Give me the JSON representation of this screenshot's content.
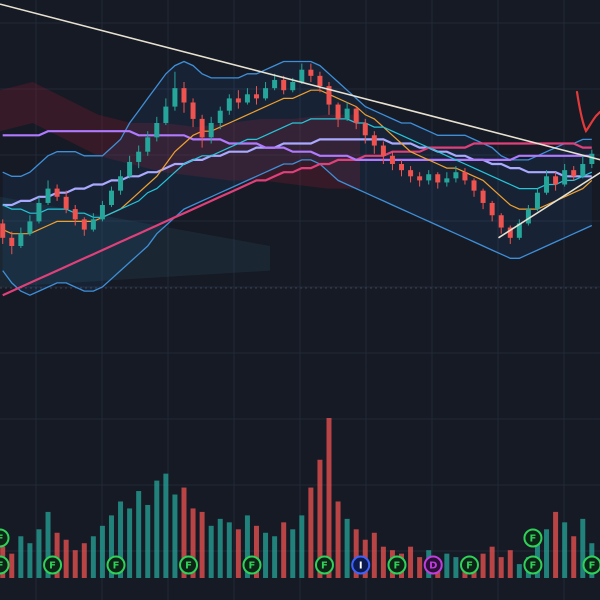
{
  "chart_data": {
    "type": "candlestick",
    "title": "",
    "xlabel": "",
    "ylabel": "",
    "ylim": [
      0,
      100
    ],
    "grid": true,
    "legend": "none",
    "candles": [
      [
        45.5,
        42.0,
        46.5,
        40.5
      ],
      [
        42.0,
        40.0,
        43.5,
        38.0
      ],
      [
        40.0,
        43.0,
        44.5,
        39.5
      ],
      [
        43.0,
        46.0,
        47.5,
        42.5
      ],
      [
        46.0,
        50.5,
        52.0,
        45.5
      ],
      [
        50.5,
        54.0,
        56.0,
        50.0
      ],
      [
        54.0,
        52.0,
        55.0,
        51.0
      ],
      [
        52.0,
        49.0,
        53.5,
        48.0
      ],
      [
        49.0,
        46.5,
        50.0,
        45.0
      ],
      [
        46.5,
        44.0,
        47.0,
        42.5
      ],
      [
        44.0,
        46.5,
        48.0,
        43.5
      ],
      [
        46.5,
        50.0,
        51.0,
        46.0
      ],
      [
        50.0,
        53.5,
        54.5,
        49.5
      ],
      [
        53.5,
        57.0,
        58.5,
        52.5
      ],
      [
        57.0,
        60.5,
        62.0,
        56.5
      ],
      [
        60.5,
        63.0,
        64.5,
        59.0
      ],
      [
        63.0,
        66.5,
        68.0,
        62.0
      ],
      [
        66.5,
        70.0,
        71.5,
        65.5
      ],
      [
        70.0,
        74.0,
        76.0,
        69.5
      ],
      [
        74.0,
        78.5,
        82.5,
        73.0
      ],
      [
        78.5,
        75.0,
        80.0,
        72.5
      ],
      [
        75.0,
        71.0,
        76.0,
        69.0
      ],
      [
        71.0,
        66.5,
        72.0,
        64.0
      ],
      [
        66.5,
        70.0,
        71.5,
        65.0
      ],
      [
        70.0,
        73.0,
        74.0,
        68.5
      ],
      [
        73.0,
        76.0,
        77.0,
        72.0
      ],
      [
        76.0,
        75.0,
        78.0,
        73.5
      ],
      [
        75.0,
        77.0,
        78.5,
        74.5
      ],
      [
        77.0,
        76.0,
        79.0,
        74.5
      ],
      [
        76.0,
        78.5,
        80.0,
        75.5
      ],
      [
        78.5,
        80.5,
        82.0,
        78.0
      ],
      [
        80.5,
        78.0,
        81.5,
        77.0
      ],
      [
        78.0,
        80.0,
        81.0,
        77.5
      ],
      [
        80.0,
        83.0,
        84.5,
        79.5
      ],
      [
        83.0,
        81.5,
        84.5,
        80.0
      ],
      [
        81.5,
        79.0,
        82.5,
        77.5
      ],
      [
        79.0,
        74.5,
        80.0,
        72.0
      ],
      [
        74.5,
        71.0,
        75.0,
        69.0
      ],
      [
        71.0,
        73.5,
        75.0,
        70.5
      ],
      [
        73.5,
        70.0,
        74.0,
        68.5
      ],
      [
        70.0,
        67.0,
        71.0,
        65.0
      ],
      [
        67.0,
        64.5,
        68.0,
        62.5
      ],
      [
        64.5,
        62.0,
        65.5,
        60.0
      ],
      [
        62.0,
        60.0,
        63.0,
        58.5
      ],
      [
        60.0,
        58.5,
        61.0,
        57.0
      ],
      [
        58.5,
        57.0,
        59.5,
        55.5
      ],
      [
        57.0,
        56.0,
        58.0,
        54.5
      ],
      [
        56.0,
        57.5,
        58.5,
        55.0
      ],
      [
        57.5,
        55.5,
        58.0,
        54.0
      ],
      [
        55.5,
        56.5,
        58.0,
        54.5
      ],
      [
        56.5,
        58.0,
        59.5,
        55.5
      ],
      [
        58.0,
        56.0,
        59.0,
        55.0
      ],
      [
        56.0,
        53.5,
        56.5,
        52.0
      ],
      [
        53.5,
        50.5,
        54.0,
        49.0
      ],
      [
        50.5,
        47.5,
        51.0,
        46.0
      ],
      [
        47.5,
        44.5,
        48.0,
        43.0
      ],
      [
        44.5,
        42.0,
        45.0,
        40.5
      ],
      [
        42.0,
        45.5,
        46.5,
        41.5
      ],
      [
        45.5,
        49.0,
        50.0,
        45.0
      ],
      [
        49.0,
        53.0,
        54.0,
        48.5
      ],
      [
        53.0,
        57.0,
        58.5,
        52.5
      ],
      [
        57.0,
        55.0,
        58.0,
        53.5
      ],
      [
        55.0,
        58.5,
        60.0,
        54.5
      ],
      [
        58.5,
        57.0,
        59.5,
        56.0
      ],
      [
        57.0,
        60.0,
        62.0,
        56.5
      ],
      [
        60.0,
        62.5,
        63.5,
        59.0
      ]
    ],
    "volumes": [
      9,
      7,
      12,
      10,
      14,
      19,
      13,
      11,
      8,
      10,
      12,
      15,
      18,
      22,
      20,
      25,
      21,
      28,
      30,
      24,
      26,
      20,
      19,
      15,
      17,
      16,
      14,
      18,
      15,
      13,
      12,
      16,
      14,
      18,
      26,
      34,
      46,
      22,
      17,
      14,
      11,
      13,
      9,
      8,
      7,
      9,
      6,
      8,
      5,
      7,
      6,
      4,
      5,
      7,
      9,
      6,
      8,
      4,
      6,
      11,
      14,
      19,
      16,
      12,
      17,
      10
    ],
    "series": [
      {
        "color": "#a9a9ff",
        "values": [
          50,
          50,
          51,
          51,
          52,
          52,
          53,
          53,
          54,
          54,
          55,
          55,
          56,
          56,
          57,
          57,
          58,
          58,
          59,
          60,
          60,
          61,
          61,
          62,
          62,
          63,
          63,
          63,
          64,
          64,
          64,
          65,
          65,
          65,
          65,
          66,
          66,
          66,
          66,
          66,
          66,
          66,
          66,
          65,
          65,
          65,
          64,
          64,
          63,
          63,
          62,
          62,
          61,
          61,
          60,
          60,
          59,
          59,
          58,
          58,
          58,
          58,
          57,
          57,
          57,
          57
        ]
      },
      {
        "color": "#e0407a",
        "values": [
          28,
          29,
          30,
          31,
          32,
          33,
          34,
          35,
          36,
          37,
          38,
          39,
          40,
          41,
          42,
          43,
          44,
          45,
          46,
          47,
          48,
          49,
          50,
          51,
          52,
          53,
          54,
          55,
          56,
          56,
          57,
          58,
          58,
          59,
          59,
          60,
          60,
          61,
          61,
          61,
          62,
          62,
          62,
          63,
          63,
          63,
          63,
          64,
          64,
          64,
          64,
          64,
          65,
          65,
          65,
          65,
          65,
          65,
          65,
          65,
          65,
          65,
          65,
          65,
          64,
          64
        ]
      },
      {
        "color": "#b07aff",
        "values": [
          67,
          67,
          67,
          67,
          67,
          68,
          68,
          68,
          68,
          68,
          68,
          68,
          68,
          68,
          68,
          67,
          67,
          67,
          67,
          67,
          67,
          66,
          66,
          66,
          66,
          65,
          65,
          65,
          65,
          64,
          64,
          64,
          63,
          63,
          63,
          62,
          62,
          62,
          62,
          61,
          61,
          61,
          61,
          61,
          61,
          61,
          61,
          61,
          61,
          61,
          61,
          61,
          61,
          61,
          61,
          61,
          61,
          62,
          62,
          62,
          62,
          62,
          62,
          62,
          62,
          62
        ]
      },
      {
        "color": "#f0a030",
        "values": [
          44,
          43,
          43,
          43,
          44,
          45,
          46,
          46,
          46,
          46,
          46,
          47,
          48,
          49,
          51,
          53,
          55,
          57,
          60,
          63,
          65,
          67,
          68,
          68,
          69,
          70,
          71,
          72,
          73,
          74,
          75,
          76,
          76,
          77,
          78,
          78,
          77,
          76,
          75,
          74,
          72,
          71,
          69,
          67,
          65,
          63,
          62,
          61,
          60,
          59,
          59,
          58,
          57,
          56,
          54,
          52,
          50,
          49,
          49,
          49,
          50,
          51,
          52,
          53,
          54,
          56
        ]
      },
      {
        "color": "#26c6da",
        "values": [
          50,
          49,
          49,
          48,
          48,
          49,
          49,
          49,
          48,
          48,
          47,
          47,
          48,
          49,
          50,
          51,
          53,
          54,
          56,
          58,
          60,
          61,
          62,
          62,
          63,
          64,
          65,
          66,
          66,
          67,
          68,
          69,
          70,
          70,
          71,
          71,
          71,
          71,
          71,
          70,
          70,
          69,
          69,
          68,
          67,
          66,
          65,
          64,
          63,
          62,
          61,
          60,
          59,
          58,
          57,
          56,
          55,
          54,
          54,
          54,
          55,
          55,
          56,
          56,
          57,
          58
        ]
      }
    ],
    "bollinger": {
      "upper": [
        58,
        57,
        57,
        58,
        60,
        62,
        63,
        63,
        63,
        62,
        62,
        62,
        64,
        66,
        70,
        73,
        76,
        79,
        82,
        84,
        85,
        84,
        82,
        81,
        81,
        81,
        81,
        82,
        82,
        83,
        84,
        85,
        85,
        85,
        85,
        84,
        82,
        80,
        78,
        76,
        74,
        73,
        72,
        71,
        70,
        70,
        69,
        68,
        67,
        67,
        67,
        67,
        66,
        65,
        64,
        62,
        61,
        61,
        61,
        62,
        63,
        64,
        65,
        65,
        66,
        66
      ],
      "lower": [
        34,
        31,
        29,
        28,
        29,
        30,
        31,
        31,
        30,
        29,
        29,
        30,
        32,
        34,
        36,
        38,
        40,
        43,
        45,
        47,
        49,
        50,
        51,
        52,
        53,
        54,
        55,
        56,
        57,
        58,
        59,
        60,
        60,
        61,
        61,
        60,
        58,
        56,
        55,
        54,
        53,
        52,
        51,
        50,
        49,
        48,
        47,
        46,
        45,
        44,
        43,
        42,
        41,
        40,
        39,
        38,
        37,
        37,
        38,
        39,
        40,
        41,
        42,
        43,
        44,
        45
      ]
    },
    "cloud": [
      {
        "top": 78,
        "bottom": 68
      },
      {
        "top": 80,
        "bottom": 70
      },
      {
        "top": 76,
        "bottom": 66
      },
      {
        "top": 72,
        "bottom": 62
      },
      {
        "top": 70,
        "bottom": 60
      },
      {
        "top": 70,
        "bottom": 58
      },
      {
        "top": 69,
        "bottom": 57
      },
      {
        "top": 70,
        "bottom": 56
      },
      {
        "top": 71,
        "bottom": 56
      },
      {
        "top": 71,
        "bottom": 55
      },
      {
        "top": 72,
        "bottom": 54
      },
      {
        "top": 72,
        "bottom": 54
      }
    ],
    "trendlines": [
      {
        "color": "#e6e1d0",
        "from": [
          0,
          99
        ],
        "to": [
          65,
          61
        ]
      },
      {
        "color": "#e6e1d0",
        "from": [
          55,
          42
        ],
        "to": [
          65,
          58
        ]
      }
    ],
    "annotations": [
      {
        "type": "handwriting",
        "color": "#e23a3a"
      }
    ],
    "event_markers": [
      {
        "x": 0,
        "label": "F",
        "row": 2
      },
      {
        "x": 0,
        "label": "F",
        "row": 1
      },
      {
        "x": 6,
        "label": "F",
        "row": 2
      },
      {
        "x": 13,
        "label": "F",
        "row": 2
      },
      {
        "x": 21,
        "label": "F",
        "row": 2
      },
      {
        "x": 28,
        "label": "F",
        "row": 2
      },
      {
        "x": 36,
        "label": "F",
        "row": 2
      },
      {
        "x": 40,
        "label": "I",
        "row": 2,
        "kind": "info"
      },
      {
        "x": 44,
        "label": "F",
        "row": 2
      },
      {
        "x": 48,
        "label": "D",
        "row": 2,
        "kind": "dividend"
      },
      {
        "x": 52,
        "label": "F",
        "row": 2
      },
      {
        "x": 59,
        "label": "F",
        "row": 2
      },
      {
        "x": 59,
        "label": "F",
        "row": 1
      },
      {
        "x": 66,
        "label": "F",
        "row": 2
      }
    ]
  }
}
